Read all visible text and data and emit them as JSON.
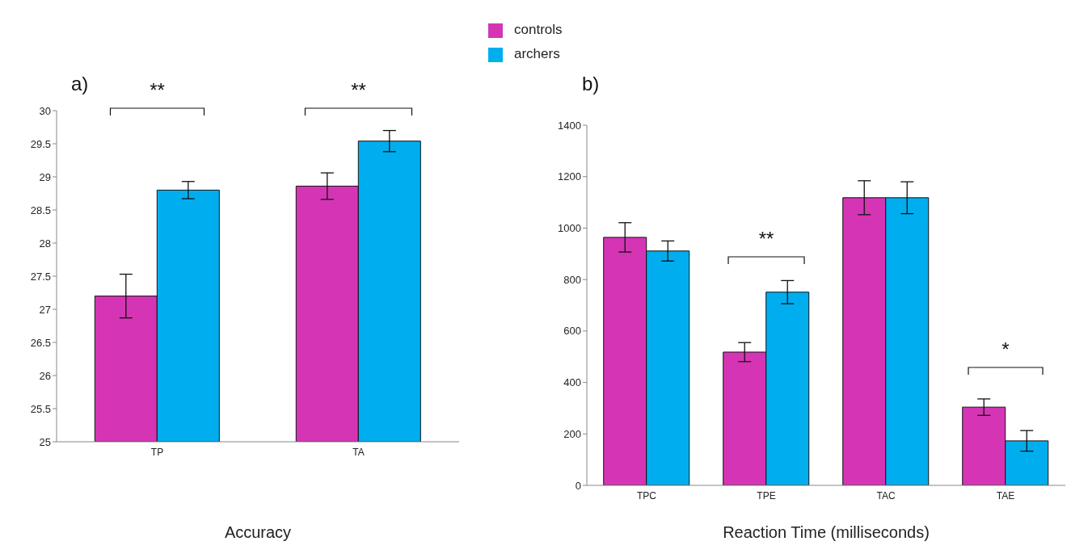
{
  "chart_data": [
    {
      "type": "bar",
      "title": "a)",
      "xlabel": "Accuracy",
      "categories": [
        "TP",
        "TA"
      ],
      "legend": "top right",
      "series": [
        {
          "name": "controls",
          "color": "#d535b5",
          "values": [
            27.2,
            28.86
          ],
          "errors": [
            0.33,
            0.2
          ]
        },
        {
          "name": "archers",
          "color": "#00aeef",
          "values": [
            28.8,
            29.54
          ],
          "errors": [
            0.13,
            0.16
          ]
        }
      ],
      "ylim": [
        25,
        30
      ],
      "yticks": [
        25,
        25.5,
        26,
        26.5,
        27,
        27.5,
        28,
        28.5,
        29,
        29.5,
        30
      ],
      "grid": false,
      "annotations": [
        "**",
        "**"
      ]
    },
    {
      "type": "bar",
      "title": "b)",
      "xlabel": "Reaction Time (milliseconds)",
      "categories": [
        "TPC",
        "TPE",
        "TAC",
        "TAE"
      ],
      "series": [
        {
          "color": "#d535b5",
          "values": [
            964,
            518,
            1118,
            304
          ],
          "errors": [
            57,
            37,
            66,
            32
          ]
        },
        {
          "color": "#00aeef",
          "values": [
            911,
            751,
            1118,
            173
          ],
          "errors": [
            39,
            45,
            62,
            40
          ]
        }
      ],
      "ylim": [
        0,
        1400
      ],
      "yticks": [
        0,
        200,
        400,
        600,
        800,
        1000,
        1200,
        1400
      ],
      "grid": false,
      "annotations": [
        "**",
        "*"
      ]
    }
  ]
}
